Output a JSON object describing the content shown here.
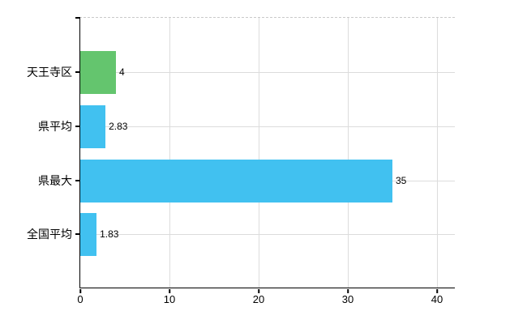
{
  "chart_data": {
    "type": "bar",
    "orientation": "horizontal",
    "categories": [
      "天王寺区",
      "県平均",
      "県最大",
      "全国平均"
    ],
    "values": [
      4,
      2.83,
      35,
      1.83
    ],
    "value_labels": [
      "4",
      "2.83",
      "35",
      "1.83"
    ],
    "bar_colors": [
      "#64c56e",
      "#41c1f0",
      "#41c1f0",
      "#41c1f0"
    ],
    "xlim": [
      0,
      42
    ],
    "xticks": [
      0,
      10,
      20,
      30,
      40
    ],
    "grid": true,
    "legend": "none"
  },
  "colors": {
    "axis": "#000000",
    "gridline": "#dcdcdc",
    "top_border_dashed": "#c9c9c9",
    "text": "#000000",
    "background": "#ffffff"
  }
}
